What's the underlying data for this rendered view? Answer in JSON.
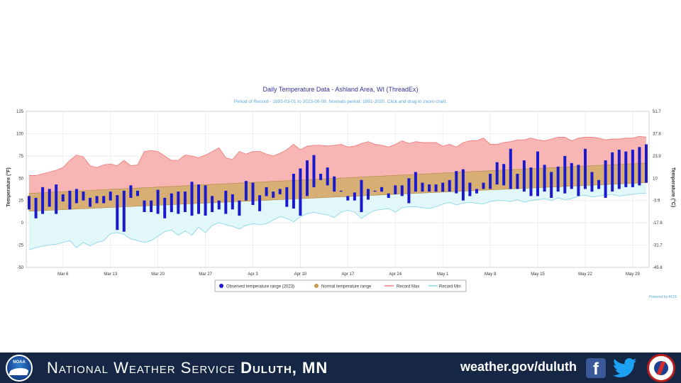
{
  "chart_data": {
    "type": "bar",
    "title": "Daily Temperature Data - Ashland Area, WI (ThreadEx)",
    "subtitle": "Period of Record - 1893-03-01 to 2023-06-09. Normals period: 1991-2020. Click and drag to zoom chart.",
    "ylabel_left": "Temperature (°F)",
    "ylabel_right": "Temperature (°C)",
    "ylim": [
      -50,
      125
    ],
    "yticks_left": [
      "125",
      "100",
      "75",
      "50",
      "25",
      "0",
      "-25",
      "-50"
    ],
    "yticks_right": [
      "51.7",
      "37.8",
      "23.9",
      "10",
      "-3.9",
      "-17.8",
      "-31.7",
      "-45.6"
    ],
    "x_start": "Mar 1",
    "x_end": "May 31",
    "xticks": [
      {
        "label": "Mar 6",
        "day": 6
      },
      {
        "label": "Mar 13",
        "day": 13
      },
      {
        "label": "Mar 20",
        "day": 20
      },
      {
        "label": "Mar 27",
        "day": 27
      },
      {
        "label": "Apr 3",
        "day": 34
      },
      {
        "label": "Apr 10",
        "day": 41
      },
      {
        "label": "Apr 17",
        "day": 48
      },
      {
        "label": "Apr 24",
        "day": 55
      },
      {
        "label": "May 1",
        "day": 62
      },
      {
        "label": "May 8",
        "day": 69
      },
      {
        "label": "May 15",
        "day": 76
      },
      {
        "label": "May 22",
        "day": 83
      },
      {
        "label": "May 29",
        "day": 90
      }
    ],
    "normal_range": {
      "start": [
        13,
        33
      ],
      "end": [
        45,
        67
      ]
    },
    "record_max": [
      53,
      53,
      55,
      57,
      59,
      62,
      70,
      76,
      74,
      64,
      62,
      65,
      66,
      64,
      70,
      64,
      65,
      80,
      81,
      80,
      75,
      70,
      70,
      76,
      75,
      73,
      76,
      80,
      84,
      73,
      71,
      80,
      77,
      80,
      80,
      77,
      75,
      78,
      82,
      88,
      82,
      86,
      87,
      87,
      86,
      87,
      88,
      85,
      86,
      89,
      91,
      88,
      87,
      85,
      88,
      92,
      89,
      91,
      90,
      90,
      90,
      86,
      88,
      85,
      90,
      92,
      92,
      95,
      88,
      88,
      90,
      91,
      93,
      93,
      95,
      93,
      92,
      94,
      96,
      96,
      92,
      95,
      96,
      96,
      95,
      93,
      94,
      94,
      95,
      95,
      97,
      96
    ],
    "record_min": [
      -30,
      -28,
      -26,
      -25,
      -24,
      -22,
      -20,
      -28,
      -22,
      -26,
      -22,
      -20,
      -12,
      -11,
      -13,
      -18,
      -20,
      -22,
      -20,
      -15,
      -10,
      -8,
      -14,
      -9,
      -14,
      -5,
      -11,
      -3,
      0,
      -2,
      -4,
      -7,
      -3,
      -1,
      -2,
      -1,
      3,
      7,
      5,
      1,
      7,
      10,
      12,
      10,
      9,
      6,
      12,
      14,
      12,
      5,
      10,
      14,
      15,
      16,
      12,
      17,
      18,
      18,
      17,
      16,
      18,
      21,
      23,
      20,
      22,
      23,
      22,
      21,
      24,
      25,
      25,
      24,
      26,
      23,
      25,
      26,
      27,
      25,
      28,
      26,
      27,
      30,
      31,
      29,
      30,
      31,
      32,
      30,
      31,
      32,
      33,
      33
    ],
    "series": [
      {
        "name": "Observed temperature range (2023)",
        "low": [
          15,
          5,
          10,
          18,
          10,
          24,
          15,
          22,
          25,
          18,
          22,
          22,
          25,
          -8,
          -10,
          28,
          30,
          12,
          12,
          10,
          5,
          12,
          10,
          12,
          8,
          10,
          8,
          12,
          15,
          10,
          15,
          8,
          25,
          20,
          13,
          30,
          28,
          32,
          18,
          16,
          8,
          30,
          40,
          48,
          42,
          35,
          35,
          25,
          25,
          12,
          26,
          35,
          35,
          28,
          32,
          30,
          22,
          35,
          35,
          35,
          35,
          35,
          35,
          33,
          25,
          30,
          33,
          38,
          38,
          43,
          42,
          38,
          38,
          35,
          30,
          30,
          35,
          28,
          35,
          33,
          38,
          30,
          38,
          35,
          38,
          28,
          35,
          38,
          40,
          40,
          42,
          45
        ],
        "high": [
          30,
          28,
          40,
          38,
          43,
          32,
          36,
          38,
          35,
          28,
          30,
          30,
          35,
          31,
          36,
          42,
          36,
          25,
          25,
          37,
          28,
          33,
          35,
          35,
          46,
          43,
          42,
          30,
          25,
          36,
          32,
          25,
          47,
          45,
          31,
          40,
          35,
          38,
          40,
          55,
          61,
          70,
          76,
          55,
          62,
          52,
          36,
          30,
          34,
          48,
          38,
          36,
          40,
          33,
          42,
          42,
          50,
          57,
          45,
          43,
          43,
          45,
          48,
          58,
          60,
          45,
          38,
          45,
          55,
          68,
          66,
          83,
          55,
          70,
          62,
          80,
          65,
          57,
          63,
          75,
          67,
          65,
          83,
          57,
          48,
          70,
          79,
          82,
          80,
          82,
          85,
          88
        ]
      },
      {
        "name": "Normal temperature range"
      },
      {
        "name": "Record Max"
      },
      {
        "name": "Record Min"
      }
    ],
    "credit": "Powered by ACIS"
  },
  "footer": {
    "title_regular": "National Weather Service",
    "title_bold": "Duluth, MN",
    "link": "weather.gov/duluth",
    "noaa_logo_text": "NOAA"
  },
  "colors": {
    "observed": "#1a1acc",
    "normal_fill": "#d7ae73",
    "record_max_fill": "#f7b5b3",
    "record_max_line": "#f08080",
    "record_min_fill": "#e1f7fa",
    "record_min_line": "#8fd8e4",
    "footer_bg": "#152744",
    "title": "#333399",
    "subtitle": "#5ba8d6"
  }
}
